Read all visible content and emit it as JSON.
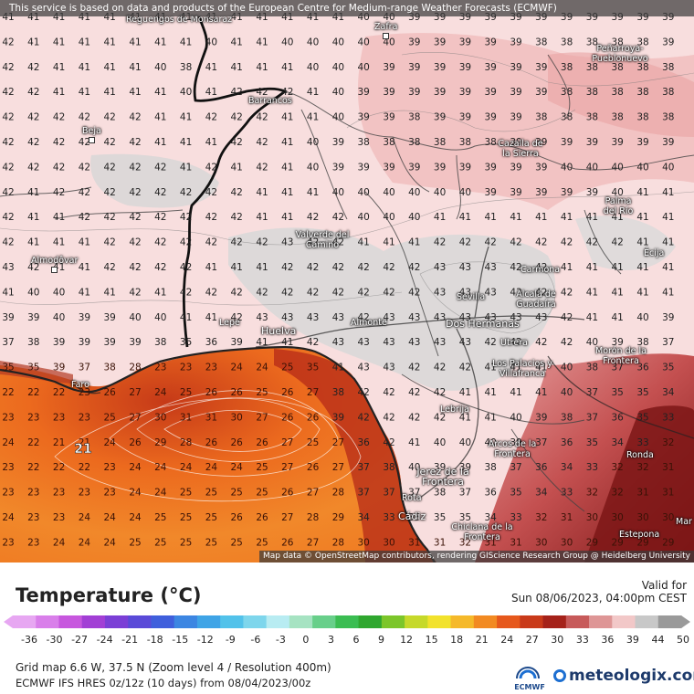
{
  "attribution_top": "This service is based on data and products of the European Centre for Medium-range Weather Forecasts (ECMWF)",
  "attribution_bottom": "Map data © OpenStreetMap contributors, rendering GIScience Research Group @ Heidelberg University",
  "legend": {
    "title": "Temperature (°C)",
    "valid_label": "Valid for",
    "valid_time": "Sun 08/06/2023, 04:00pm CEST",
    "scale_ticks": [
      "-36",
      "-30",
      "-27",
      "-24",
      "-21",
      "-18",
      "-15",
      "-12",
      "-9",
      "-6",
      "-3",
      "0",
      "3",
      "6",
      "9",
      "12",
      "15",
      "18",
      "21",
      "24",
      "27",
      "30",
      "33",
      "36",
      "39",
      "44",
      "50"
    ],
    "scale_colors": [
      "#e7a7f2",
      "#d97fea",
      "#c757de",
      "#a23fd5",
      "#7b3fd6",
      "#5a4ad8",
      "#3f5fdc",
      "#3c86e2",
      "#3fa4e6",
      "#52c2ea",
      "#7ed6ec",
      "#b8ecf2",
      "#a6e3c2",
      "#68cf8a",
      "#3bbd52",
      "#2fa72f",
      "#7cc62a",
      "#c6d92a",
      "#f2e22c",
      "#f5b92a",
      "#f28a22",
      "#e6581c",
      "#c93a1a",
      "#a5221a",
      "#c75a5a",
      "#de9696",
      "#f2c8c8",
      "#c8c8c8",
      "#9a9a9a"
    ]
  },
  "info": {
    "grid": "Grid map 6.6 W, 37.5 N (Zoom level 4 / Resolution 400m)",
    "model": "ECMWF IFS HRES 0z/12z (10 days) from 08/04/2023/00z"
  },
  "logos": {
    "ecmwf": "ECMWF",
    "brand": "meteologix.com"
  },
  "places": [
    {
      "name": "Reguengos de Monsaraz"
    },
    {
      "name": "Zafra"
    },
    {
      "name": "Peñarroya-Pueblonuevo"
    },
    {
      "name": "Barrancos"
    },
    {
      "name": "Beja"
    },
    {
      "name": "Cazalla de la Sierra"
    },
    {
      "name": "Palma del Río"
    },
    {
      "name": "Valverde del Camino"
    },
    {
      "name": "Almodôvar"
    },
    {
      "name": "Écija"
    },
    {
      "name": "Carmona"
    },
    {
      "name": "Sevilla"
    },
    {
      "name": "Alcalá de Guadaíra"
    },
    {
      "name": "Lepe"
    },
    {
      "name": "Huelva"
    },
    {
      "name": "Almonte"
    },
    {
      "name": "Dos Hermanas"
    },
    {
      "name": "Utrera"
    },
    {
      "name": "Morón de la Frontera"
    },
    {
      "name": "Los Palacios y Villafranca"
    },
    {
      "name": "Faro"
    },
    {
      "name": "Lebrija"
    },
    {
      "name": "Arcos de la Frontera"
    },
    {
      "name": "Ronda"
    },
    {
      "name": "Jerez de la Frontera"
    },
    {
      "name": "Rota"
    },
    {
      "name": "Cádiz"
    },
    {
      "name": "Chiclana de la Frontera"
    },
    {
      "name": "Estepona"
    },
    {
      "name": "Mar"
    }
  ],
  "temperature_grid": [
    "41 41 41 41 41 41 41 41 41 41 41 41 41 41 40 40 39 39 39 39 39 39 39 39 39 39 39",
    "42 41 41 41 41 41 41 41 40 41 41 40 40 40 40 40 39 39 39 39 39 38 38 38 38 38 39",
    "42 42 41 41 41 41 40 38 41 41 41 41 40 40 40 39 39 39 39 39 39 39 38 38 38 38 38",
    "42 42 41 41 41 41 41 40 41 42 42 42 41 40 39 39 39 39 39 39 39 39 38 38 38 38 38",
    "42 42 42 42 42 42 41 41 42 42 42 41 41 40 39 39 38 39 39 39 39 38 38 38 38 38 38",
    "42 42 42 42 42 42 41 41 41 42 42 41 40 39 38 38 38 38 38 38 39 39 39 39 39 39 39",
    "42 42 42 42 42 42 42 41 42 41 42 41 40 39 39 39 39 39 39 39 39 39 40 40 40 40 40",
    "42 41 42 42 42 42 42 42 42 42 41 41 41 40 40 40 40 40 40 39 39 39 39 39 40 41 41",
    "42 41 41 42 42 42 42 42 42 42 41 41 42 42 40 40 40 41 41 41 41 41 41 41 41 41 41",
    "42 41 41 41 42 42 42 42 42 42 42 43 42 42 41 41 41 42 42 42 42 42 42 42 42 41 41",
    "43 42 41 41 42 42 42 42 41 41 41 42 42 42 42 42 42 43 43 43 42 42 41 41 41 41 41",
    "41 40 40 41 41 42 41 42 42 42 42 42 42 42 42 42 42 43 43 43 43 42 42 41 41 41 41",
    "39 39 40 39 39 40 40 41 41 42 43 43 43 43 42 43 43 43 43 43 43 43 42 41 41 40 39",
    "37 38 39 39 39 39 38 35 36 39 41 41 42 43 43 43 43 43 43 42 42 42 42 40 39 38 37",
    "35 35 39 37 38 28 23 23 23 24 24 25 35 41 43 43 42 42 42 41 41 41 40 38 37 36 35",
    "22 22 22 23 26 27 24 25 26 26 25 26 27 38 42 42 42 42 41 41 41 41 40 37 35 35 34",
    "23 23 23 23 25 27 30 31 31 30 27 26 26 39 42 42 42 42 41 41 40 39 38 37 36 35 33",
    "24 22 21 21 24 26 29 28 26 26 26 27 25 27 36 42 41 40 40 40 39 37 36 35 34 33 32",
    "23 22 22 22 23 24 24 24 24 24 25 27 26 27 37 38 40 39 39 38 37 36 34 33 32 32 31",
    "23 23 23 23 23 24 24 25 25 25 25 26 27 28 37 37 37 38 37 36 35 34 33 32 32 31 31",
    "24 23 23 24 24 24 25 25 25 26 26 27 28 29 34 33 35 35 35 34 33 32 31 30 30 30 30",
    "23 23 24 24 24 25 25 25 25 25 25 26 27 28 30 30 31 31 32 31 31 30 30 29 29 29 29"
  ],
  "highlight_value": "21"
}
